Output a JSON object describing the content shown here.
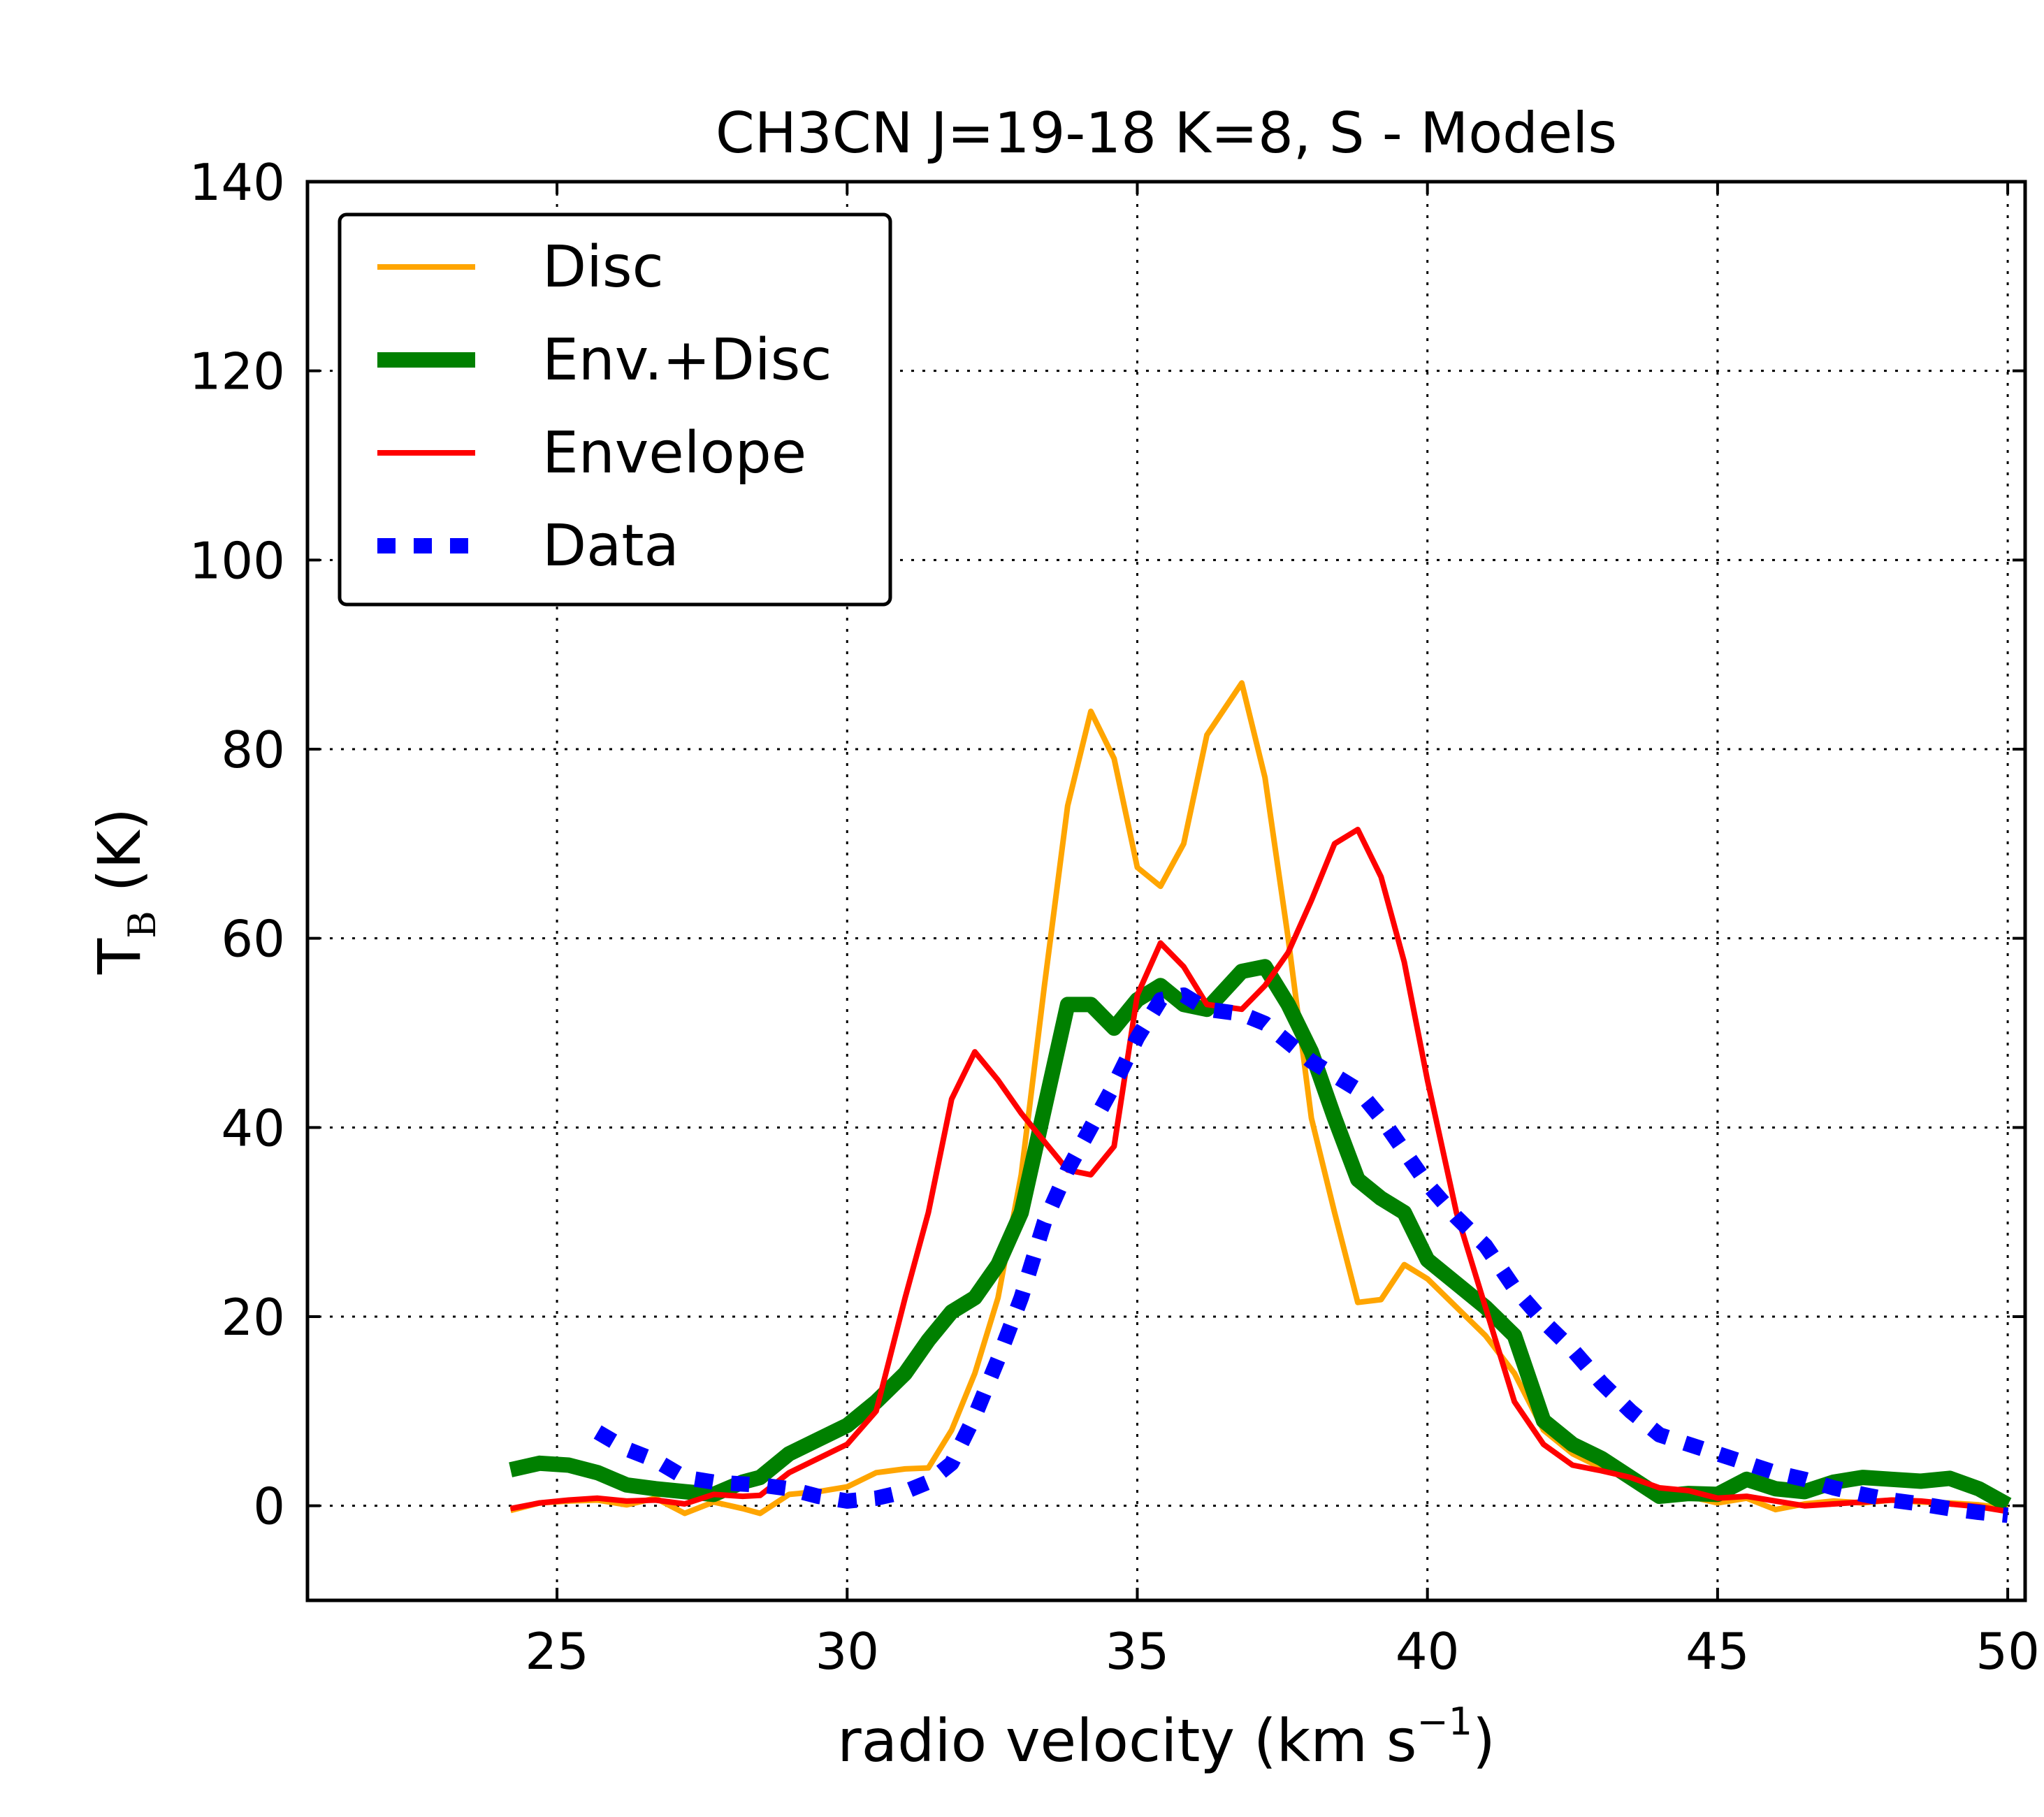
{
  "chart_data": {
    "type": "line",
    "title": "CH3CN J=19-18 K=8, S - Models",
    "xlabel": "radio velocity (km s",
    "xlabel_sup": "−1",
    "xlabel_tail": ")",
    "ylabel": "T",
    "ylabel_sub": "B",
    "ylabel_tail": " (K)",
    "xlim": [
      20.7,
      50.3
    ],
    "ylim": [
      -10,
      140
    ],
    "xticks": [
      25,
      30,
      35,
      40,
      45,
      50
    ],
    "yticks": [
      0,
      20,
      40,
      60,
      80,
      100,
      120,
      140
    ],
    "grid": true,
    "legend_position": "top-left",
    "series": [
      {
        "name": "Disc",
        "color": "#FFA500",
        "style": "solid",
        "x": [
          24.2,
          24.7,
          25.2,
          25.7,
          26.2,
          26.7,
          27.2,
          27.7,
          28.2,
          28.5,
          29.0,
          29.5,
          30.0,
          30.5,
          31.0,
          31.4,
          31.8,
          32.2,
          32.6,
          33.0,
          33.4,
          33.8,
          34.2,
          34.6,
          35.0,
          35.4,
          35.8,
          36.2,
          36.8,
          37.2,
          37.6,
          38.0,
          38.4,
          38.8,
          39.2,
          39.6,
          40.0,
          40.5,
          41.0,
          41.5,
          42.0,
          42.5,
          43.0,
          43.5,
          44.0,
          44.5,
          45.0,
          45.5,
          46.0,
          46.5,
          47.0,
          47.5,
          48.0,
          48.5,
          49.0,
          49.5,
          50.0
        ],
        "y": [
          -0.5,
          0.3,
          0.5,
          0.6,
          0.1,
          0.8,
          -0.8,
          0.4,
          -0.3,
          -0.8,
          1.2,
          1.5,
          2.0,
          3.5,
          3.9,
          4.0,
          8.0,
          14.0,
          22.0,
          35.0,
          55.0,
          74.0,
          84.0,
          79.0,
          67.5,
          65.5,
          70.0,
          81.5,
          87.0,
          77.0,
          60.0,
          41.0,
          31.0,
          21.5,
          21.8,
          25.5,
          24.0,
          21.0,
          18.0,
          14.0,
          8.0,
          5.5,
          4.0,
          3.0,
          1.5,
          1.0,
          0.3,
          0.8,
          -0.4,
          0.2,
          0.5,
          0.3,
          0.6,
          0.4,
          0.3,
          0.1,
          -0.3
        ]
      },
      {
        "name": "Env.+Disc",
        "color": "#008000",
        "style": "thick",
        "x": [
          24.2,
          24.7,
          25.2,
          25.7,
          26.2,
          26.7,
          27.2,
          27.7,
          28.2,
          28.5,
          29.0,
          29.5,
          30.0,
          30.5,
          31.0,
          31.4,
          31.8,
          32.2,
          32.6,
          33.0,
          33.4,
          33.8,
          34.2,
          34.6,
          35.0,
          35.4,
          35.8,
          36.2,
          36.8,
          37.2,
          37.6,
          38.0,
          38.4,
          38.8,
          39.2,
          39.6,
          40.0,
          40.5,
          41.0,
          41.5,
          42.0,
          42.5,
          43.0,
          43.5,
          44.0,
          44.5,
          45.0,
          45.5,
          46.0,
          46.5,
          47.0,
          47.5,
          48.0,
          48.5,
          49.0,
          49.5,
          50.0
        ],
        "y": [
          3.8,
          4.5,
          4.3,
          3.5,
          2.2,
          1.8,
          1.5,
          1.2,
          2.5,
          3.0,
          5.5,
          7.0,
          8.5,
          11.0,
          14.0,
          17.5,
          20.5,
          22.0,
          25.5,
          31.0,
          42.0,
          53.0,
          53.0,
          50.5,
          53.5,
          55.0,
          53.0,
          52.5,
          56.5,
          57.0,
          53.0,
          48.0,
          41.0,
          34.5,
          32.5,
          31.0,
          26.0,
          23.5,
          21.0,
          18.0,
          9.0,
          6.5,
          5.0,
          3.0,
          1.0,
          1.3,
          1.2,
          2.8,
          1.8,
          1.5,
          2.5,
          3.0,
          2.8,
          2.6,
          2.9,
          1.8,
          0.1
        ]
      },
      {
        "name": "Envelope",
        "color": "#FF0000",
        "style": "solid",
        "x": [
          24.2,
          24.7,
          25.2,
          25.7,
          26.2,
          26.7,
          27.2,
          27.7,
          28.2,
          28.5,
          29.0,
          29.5,
          30.0,
          30.5,
          31.0,
          31.4,
          31.8,
          32.2,
          32.6,
          33.0,
          33.4,
          33.8,
          34.2,
          34.6,
          35.0,
          35.4,
          35.8,
          36.2,
          36.8,
          37.2,
          37.6,
          38.0,
          38.4,
          38.8,
          39.2,
          39.6,
          40.0,
          40.5,
          41.0,
          41.5,
          42.0,
          42.5,
          43.0,
          43.5,
          44.0,
          44.5,
          45.0,
          45.5,
          46.0,
          46.5,
          47.0,
          47.5,
          48.0,
          48.5,
          49.0,
          49.5,
          50.0
        ],
        "y": [
          -0.3,
          0.3,
          0.6,
          0.8,
          0.5,
          0.6,
          0.2,
          1.2,
          1.0,
          1.1,
          3.5,
          5.0,
          6.5,
          10.0,
          22.0,
          31.0,
          43.0,
          48.0,
          45.0,
          41.5,
          38.5,
          35.5,
          35.0,
          38.0,
          54.0,
          59.5,
          57.0,
          53.0,
          52.5,
          55.0,
          58.5,
          64.0,
          70.0,
          71.5,
          66.5,
          57.5,
          45.0,
          31.0,
          21.0,
          11.0,
          6.5,
          4.3,
          3.7,
          3.0,
          1.9,
          1.6,
          0.8,
          1.0,
          0.5,
          0.0,
          0.2,
          0.4,
          0.6,
          0.5,
          0.2,
          -0.1,
          -0.6
        ]
      },
      {
        "name": "Data",
        "color": "#0000FF",
        "style": "dotted",
        "x": [
          24.2,
          24.7,
          25.2,
          25.7,
          26.2,
          26.7,
          27.2,
          27.7,
          28.2,
          28.5,
          29.0,
          29.5,
          30.0,
          30.5,
          31.0,
          31.4,
          31.8,
          32.2,
          32.6,
          33.0,
          33.4,
          33.8,
          34.2,
          34.6,
          35.0,
          35.4,
          35.8,
          36.2,
          36.8,
          37.2,
          37.6,
          38.0,
          38.4,
          38.8,
          39.2,
          39.6,
          40.0,
          40.5,
          41.0,
          41.5,
          42.0,
          42.5,
          43.0,
          43.5,
          44.0,
          44.5,
          45.0,
          45.5,
          46.0,
          46.5,
          47.0,
          47.5,
          48.0,
          48.5,
          49.0,
          49.5,
          50.0
        ],
        "y": [
          null,
          null,
          null,
          7.8,
          6.0,
          4.8,
          3.0,
          2.5,
          2.3,
          2.2,
          1.8,
          1.0,
          0.5,
          0.8,
          1.5,
          2.5,
          4.5,
          9.5,
          15.5,
          22.0,
          30.0,
          35.5,
          40.0,
          44.5,
          49.5,
          53.5,
          54.0,
          52.5,
          52.0,
          51.0,
          49.0,
          47.0,
          45.5,
          44.0,
          41.0,
          37.5,
          34.0,
          30.5,
          27.5,
          23.0,
          19.5,
          16.5,
          13.0,
          10.0,
          7.5,
          6.5,
          5.5,
          4.5,
          3.5,
          2.8,
          1.9,
          1.2,
          0.6,
          0.2,
          -0.3,
          -0.7,
          -1.0
        ]
      }
    ]
  }
}
